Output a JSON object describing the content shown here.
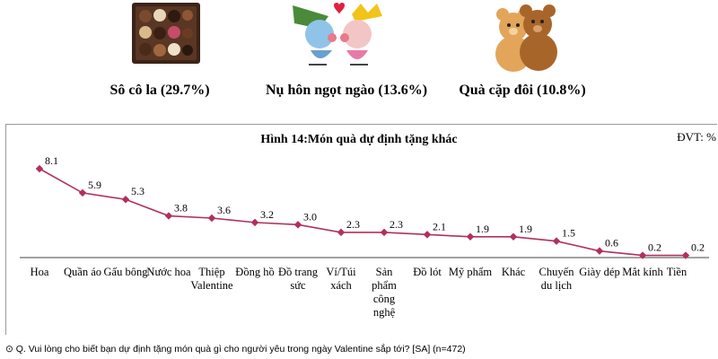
{
  "gifts": [
    {
      "label": "Sô cô la (29.7%)",
      "icon": "chocolate-box-icon"
    },
    {
      "label": "Nụ hôn ngọt ngào (13.6%)",
      "icon": "kiss-icon"
    },
    {
      "label": "Quà cặp đôi (10.8%)",
      "icon": "teddy-bears-icon"
    }
  ],
  "chart_data": {
    "type": "line",
    "title": "Hình  14:Món quà dự định tặng khác",
    "unit": "ĐVT: %",
    "categories": [
      "Hoa",
      "Quần áo",
      "Gấu bông",
      "Nước hoa",
      "Thiệp\nValentine",
      "Đồng hồ",
      "Đồ trang\nsức",
      "Ví/Túi\nxách",
      "Sản\nphẩm\ncông\nnghệ",
      "Đồ lót",
      "Mỹ phẩm",
      "Khác",
      "Chuyến\ndu lịch",
      "Giày dép",
      "Mắt kính",
      "Tiền"
    ],
    "values": [
      8.1,
      5.9,
      5.3,
      3.8,
      3.6,
      3.2,
      3.0,
      2.3,
      2.3,
      2.1,
      1.9,
      1.9,
      1.5,
      0.6,
      0.2,
      0.2
    ],
    "value_labels": [
      "8.1",
      "5.9",
      "5.3",
      "3.8",
      "3.6",
      "3.2",
      "3.0",
      "2.3",
      "2.3",
      "2.1",
      "1.9",
      "1.9",
      "1.5",
      "0.6",
      "0.2",
      "0.2"
    ],
    "ylim": [
      0,
      8.1
    ],
    "grid": false,
    "legend": "none",
    "line_color": "#b03060"
  },
  "footnote": "⊙ Q. Vui lòng cho biết bạn dự định tặng món quà gì cho người yêu trong ngày Valentine sắp tới? [SA] (n=472)"
}
